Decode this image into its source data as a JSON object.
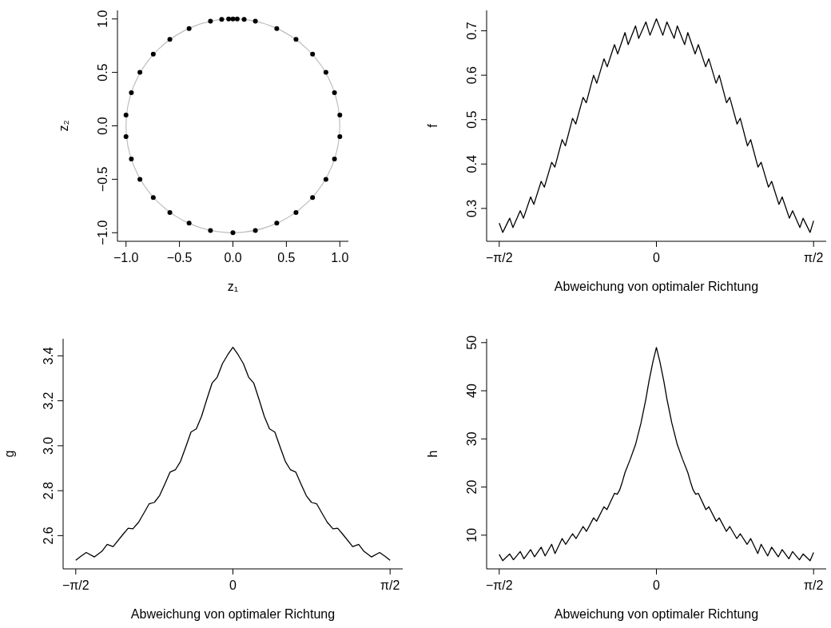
{
  "chart_data": [
    {
      "type": "scatter",
      "xlabel": "z₁",
      "ylabel": "z₂",
      "xlim": [
        -1.08,
        1.08
      ],
      "ylim": [
        -1.08,
        1.08
      ],
      "xticks": [
        {
          "value": -1,
          "label": "−1.0"
        },
        {
          "value": -0.5,
          "label": "−0.5"
        },
        {
          "value": 0,
          "label": "0.0"
        },
        {
          "value": 0.5,
          "label": "0.5"
        },
        {
          "value": 1,
          "label": "1.0"
        }
      ],
      "yticks": [
        {
          "value": -1,
          "label": "−1.0"
        },
        {
          "value": -0.5,
          "label": "−0.5"
        },
        {
          "value": 0,
          "label": "0.0"
        },
        {
          "value": 0.5,
          "label": "0.5"
        },
        {
          "value": 1,
          "label": "1.0"
        }
      ],
      "marker": "circle",
      "series": [
        {
          "color": "#000000",
          "x": [
            -0.21,
            -0.105,
            -0.04,
            0,
            0.04,
            0.105,
            0.21,
            0.41,
            0.59,
            0.745,
            0.87,
            0.95,
            1.0,
            1.0,
            0.95,
            0.87,
            0.745,
            0.59,
            0.41,
            0.21,
            0,
            -0.21,
            -0.41,
            -0.59,
            -0.745,
            -0.87,
            -0.95,
            -1.0,
            -1.0,
            -0.95,
            -0.87,
            -0.745,
            -0.59,
            -0.41
          ],
          "values": [
            0.98,
            0.995,
            1.0,
            1.0,
            1.0,
            0.995,
            0.98,
            0.91,
            0.81,
            0.67,
            0.5,
            0.31,
            0.1,
            -0.1,
            -0.31,
            -0.5,
            -0.67,
            -0.81,
            -0.91,
            -0.98,
            -1.0,
            -0.98,
            -0.91,
            -0.81,
            -0.67,
            -0.5,
            -0.31,
            -0.1,
            0.1,
            0.31,
            0.5,
            0.67,
            0.81,
            0.91
          ]
        }
      ]
    },
    {
      "type": "line",
      "xlabel": "Abweichung von optimaler Richtung",
      "ylabel": "f",
      "xlim": [
        -1.697,
        1.697
      ],
      "ylim": [
        0.226,
        0.746
      ],
      "xticks": [
        {
          "value": -1.5708,
          "label": "−π/2"
        },
        {
          "value": 0,
          "label": "0"
        },
        {
          "value": 1.5708,
          "label": "π/2"
        }
      ],
      "yticks": [
        0.3,
        0.4,
        0.5,
        0.6,
        0.7
      ],
      "series": [
        {
          "color": "#000000",
          "x": [
            -1.571,
            -1.536,
            -1.466,
            -1.434,
            -1.361,
            -1.329,
            -1.257,
            -1.225,
            -1.152,
            -1.12,
            -1.047,
            -1.015,
            -0.942,
            -0.91,
            -0.838,
            -0.806,
            -0.733,
            -0.701,
            -0.628,
            -0.596,
            -0.524,
            -0.492,
            -0.419,
            -0.387,
            -0.314,
            -0.282,
            -0.209,
            -0.177,
            -0.105,
            -0.064,
            0,
            0.064,
            0.105,
            0.177,
            0.209,
            0.282,
            0.314,
            0.387,
            0.419,
            0.492,
            0.524,
            0.596,
            0.628,
            0.701,
            0.733,
            0.806,
            0.838,
            0.91,
            0.942,
            1.015,
            1.047,
            1.12,
            1.152,
            1.225,
            1.257,
            1.329,
            1.361,
            1.434,
            1.466,
            1.536,
            1.571
          ],
          "values": [
            0.267,
            0.246,
            0.278,
            0.257,
            0.295,
            0.278,
            0.326,
            0.309,
            0.361,
            0.348,
            0.404,
            0.393,
            0.455,
            0.441,
            0.503,
            0.49,
            0.55,
            0.538,
            0.6,
            0.582,
            0.637,
            0.619,
            0.669,
            0.648,
            0.696,
            0.669,
            0.711,
            0.683,
            0.72,
            0.69,
            0.727,
            0.69,
            0.72,
            0.683,
            0.711,
            0.669,
            0.696,
            0.648,
            0.669,
            0.619,
            0.637,
            0.582,
            0.6,
            0.538,
            0.55,
            0.49,
            0.503,
            0.441,
            0.455,
            0.393,
            0.404,
            0.348,
            0.361,
            0.309,
            0.326,
            0.278,
            0.295,
            0.257,
            0.278,
            0.246,
            0.272
          ]
        }
      ]
    },
    {
      "type": "line",
      "xlabel": "Abweichung von optimaler Richtung",
      "ylabel": "g",
      "xlim": [
        -1.697,
        1.697
      ],
      "ylim": [
        2.452,
        3.476
      ],
      "xticks": [
        {
          "value": -1.5708,
          "label": "−π/2"
        },
        {
          "value": 0,
          "label": "0"
        },
        {
          "value": 1.5708,
          "label": "π/2"
        }
      ],
      "yticks": [
        2.6,
        2.8,
        {
          "value": 3.0,
          "label": "3.0"
        },
        3.2,
        3.4
      ],
      "series": [
        {
          "color": "#000000",
          "x": [
            -1.571,
            -1.52,
            -1.466,
            -1.384,
            -1.31,
            -1.257,
            -1.197,
            -1.1,
            -1.047,
            -1.0,
            -0.942,
            -0.89,
            -0.838,
            -0.785,
            -0.733,
            -0.68,
            -0.628,
            -0.575,
            -0.524,
            -0.471,
            -0.419,
            -0.366,
            -0.314,
            -0.262,
            -0.209,
            -0.157,
            -0.105,
            -0.052,
            0,
            0.052,
            0.105,
            0.157,
            0.209,
            0.262,
            0.314,
            0.366,
            0.419,
            0.471,
            0.524,
            0.575,
            0.628,
            0.68,
            0.733,
            0.785,
            0.838,
            0.89,
            0.942,
            1.0,
            1.047,
            1.1,
            1.197,
            1.257,
            1.31,
            1.384,
            1.466,
            1.52,
            1.571
          ],
          "values": [
            2.49,
            2.508,
            2.525,
            2.505,
            2.53,
            2.561,
            2.551,
            2.605,
            2.633,
            2.63,
            2.66,
            2.7,
            2.741,
            2.748,
            2.778,
            2.83,
            2.883,
            2.893,
            2.93,
            2.995,
            3.061,
            3.075,
            3.13,
            3.205,
            3.278,
            3.305,
            3.365,
            3.405,
            3.438,
            3.405,
            3.365,
            3.305,
            3.278,
            3.205,
            3.13,
            3.075,
            3.061,
            2.995,
            2.93,
            2.893,
            2.883,
            2.83,
            2.778,
            2.748,
            2.741,
            2.7,
            2.66,
            2.63,
            2.633,
            2.605,
            2.551,
            2.561,
            2.53,
            2.505,
            2.525,
            2.508,
            2.49
          ]
        }
      ]
    },
    {
      "type": "line",
      "xlabel": "Abweichung von optimaler Richtung",
      "ylabel": "h",
      "xlim": [
        -1.697,
        1.697
      ],
      "ylim": [
        3.0,
        50.8
      ],
      "xticks": [
        {
          "value": -1.5708,
          "label": "−π/2"
        },
        {
          "value": 0,
          "label": "0"
        },
        {
          "value": 1.5708,
          "label": "π/2"
        }
      ],
      "yticks": [
        10,
        20,
        30,
        40,
        50
      ],
      "series": [
        {
          "color": "#000000",
          "x": [
            -1.571,
            -1.536,
            -1.466,
            -1.429,
            -1.361,
            -1.324,
            -1.257,
            -1.218,
            -1.152,
            -1.112,
            -1.047,
            -1.013,
            -0.942,
            -0.907,
            -0.838,
            -0.803,
            -0.733,
            -0.699,
            -0.628,
            -0.598,
            -0.524,
            -0.495,
            -0.419,
            -0.392,
            -0.367,
            -0.34,
            -0.314,
            -0.261,
            -0.209,
            -0.154,
            -0.105,
            -0.075,
            -0.035,
            0,
            0.035,
            0.075,
            0.105,
            0.154,
            0.209,
            0.261,
            0.314,
            0.34,
            0.367,
            0.392,
            0.419,
            0.495,
            0.524,
            0.598,
            0.628,
            0.699,
            0.733,
            0.803,
            0.838,
            0.907,
            0.942,
            1.013,
            1.047,
            1.112,
            1.152,
            1.218,
            1.257,
            1.324,
            1.361,
            1.429,
            1.466,
            1.536,
            1.571
          ],
          "values": [
            6.0,
            4.7,
            6.1,
            4.9,
            6.6,
            5.1,
            7.0,
            5.5,
            7.5,
            5.7,
            8.1,
            6.2,
            9.3,
            8.1,
            10.3,
            9.3,
            11.8,
            10.8,
            13.6,
            12.9,
            15.9,
            15.3,
            18.7,
            18.5,
            19.4,
            21.1,
            23.0,
            25.8,
            28.8,
            33.3,
            38.3,
            41.9,
            46.0,
            49.0,
            46.0,
            41.9,
            38.3,
            33.3,
            28.8,
            25.8,
            23.0,
            21.1,
            19.4,
            18.5,
            18.7,
            15.3,
            15.9,
            12.9,
            13.6,
            10.8,
            11.8,
            9.3,
            10.3,
            8.1,
            9.3,
            6.2,
            8.1,
            5.7,
            7.5,
            5.5,
            7.0,
            5.1,
            6.6,
            4.9,
            6.1,
            4.7,
            6.4
          ]
        }
      ]
    }
  ]
}
